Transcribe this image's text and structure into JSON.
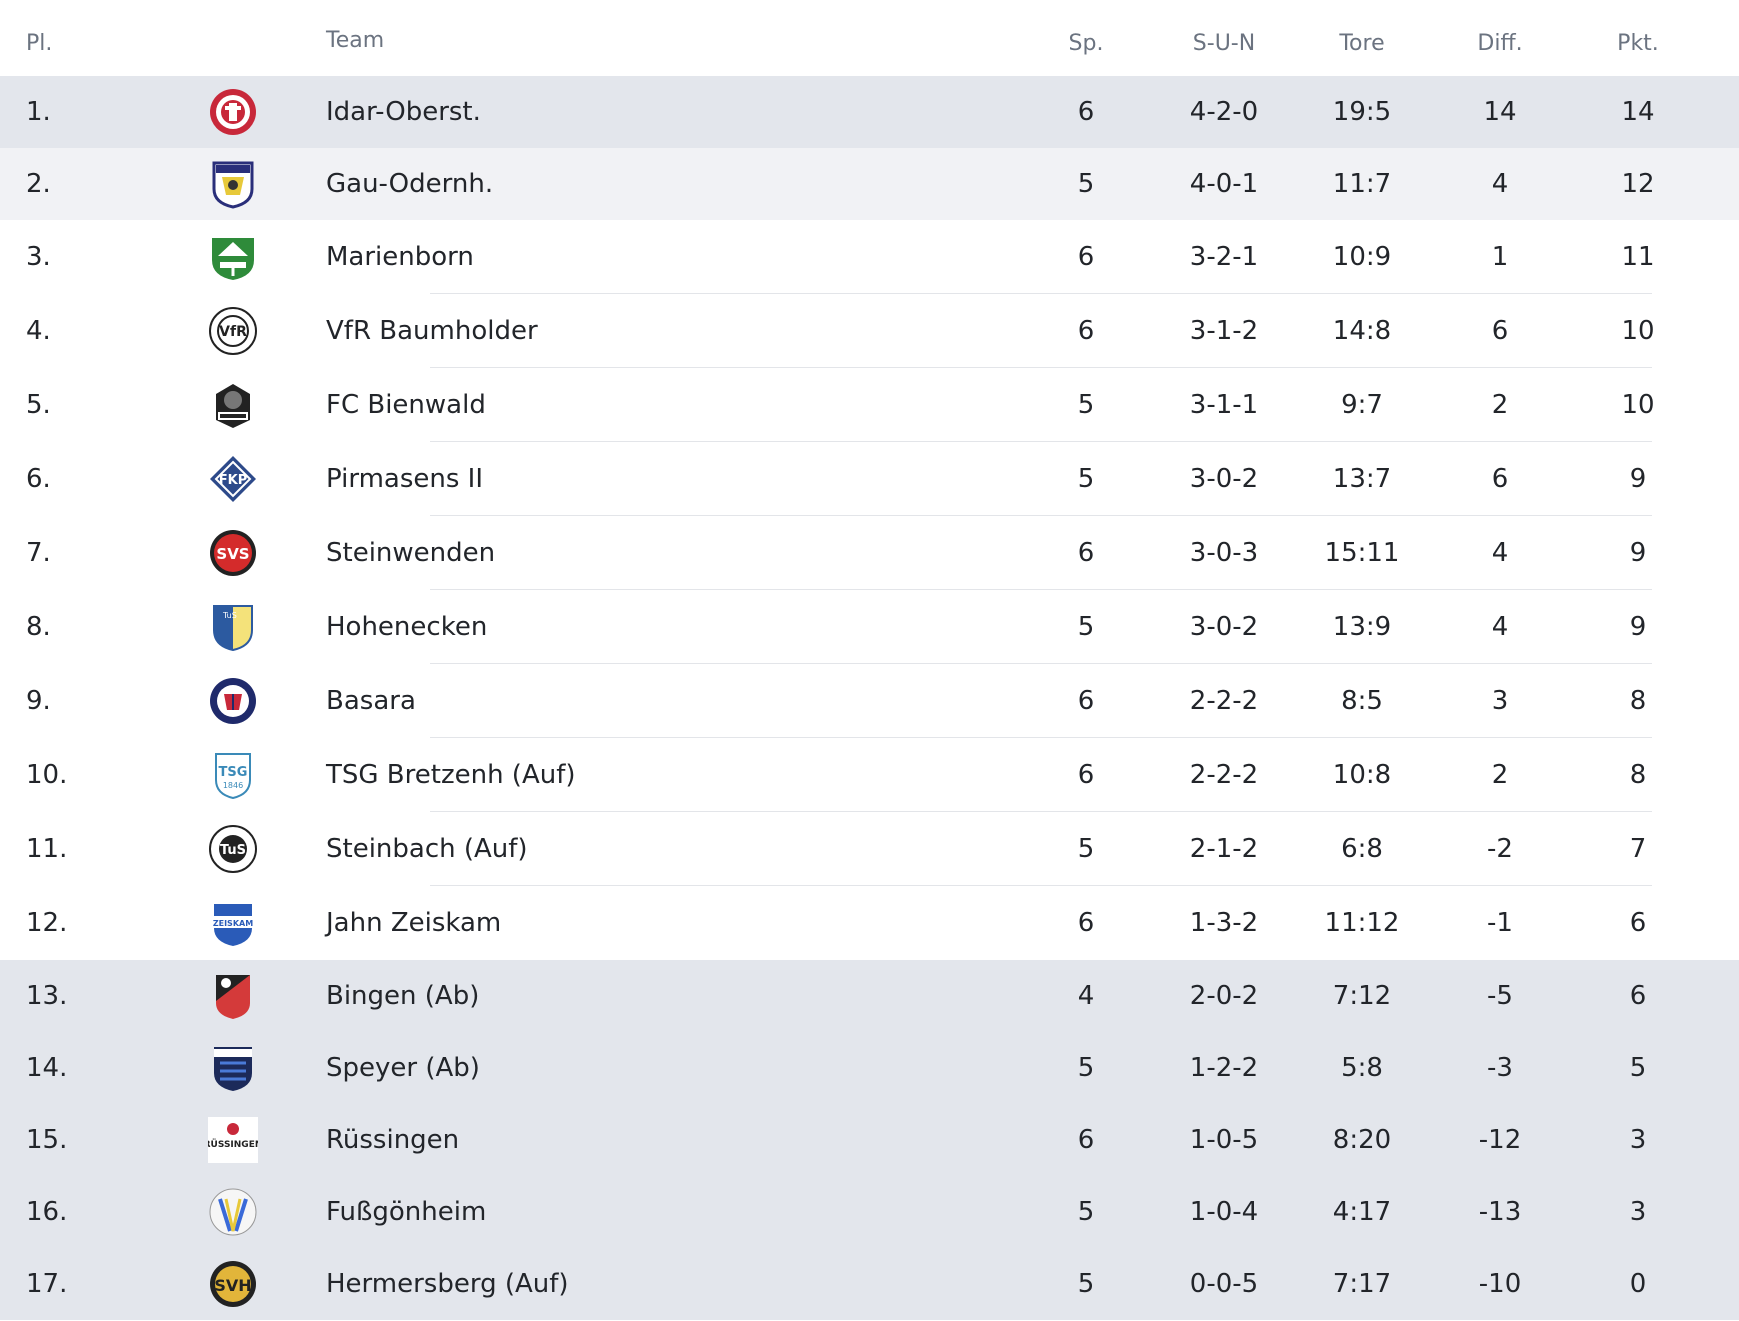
{
  "header": {
    "pos": "Pl.",
    "team": "Team",
    "sp": "Sp.",
    "sun": "S-U-N",
    "tore": "Tore",
    "diff": "Diff.",
    "pkt": "Pkt."
  },
  "colors": {
    "promotion_bg": "#e3e6ec",
    "second_bg": "#f1f2f5",
    "relegation_bg": "#e3e6ec",
    "text": "#22252a",
    "header_text": "#6b7380"
  },
  "rows": [
    {
      "pos": "1.",
      "team": "Idar-Oberst.",
      "sp": "6",
      "sun": "4-2-0",
      "tore": "19:5",
      "diff": "14",
      "pkt": "14",
      "logo": "idar-oberstein-crest",
      "zone": "promo-1"
    },
    {
      "pos": "2.",
      "team": "Gau-Odernh.",
      "sp": "5",
      "sun": "4-0-1",
      "tore": "11:7",
      "diff": "4",
      "pkt": "12",
      "logo": "gau-odernheim-crest",
      "zone": "promo-2"
    },
    {
      "pos": "3.",
      "team": "Marienborn",
      "sp": "6",
      "sun": "3-2-1",
      "tore": "10:9",
      "diff": "1",
      "pkt": "11",
      "logo": "marienborn-crest",
      "zone": ""
    },
    {
      "pos": "4.",
      "team": "VfR Baumholder",
      "sp": "6",
      "sun": "3-1-2",
      "tore": "14:8",
      "diff": "6",
      "pkt": "10",
      "logo": "baumholder-crest",
      "zone": ""
    },
    {
      "pos": "5.",
      "team": "FC Bienwald",
      "sp": "5",
      "sun": "3-1-1",
      "tore": "9:7",
      "diff": "2",
      "pkt": "10",
      "logo": "bienwald-crest",
      "zone": ""
    },
    {
      "pos": "6.",
      "team": "Pirmasens II",
      "sp": "5",
      "sun": "3-0-2",
      "tore": "13:7",
      "diff": "6",
      "pkt": "9",
      "logo": "pirmasens-crest",
      "zone": ""
    },
    {
      "pos": "7.",
      "team": "Steinwenden",
      "sp": "6",
      "sun": "3-0-3",
      "tore": "15:11",
      "diff": "4",
      "pkt": "9",
      "logo": "steinwenden-crest",
      "zone": ""
    },
    {
      "pos": "8.",
      "team": "Hohenecken",
      "sp": "5",
      "sun": "3-0-2",
      "tore": "13:9",
      "diff": "4",
      "pkt": "9",
      "logo": "hohenecken-crest",
      "zone": ""
    },
    {
      "pos": "9.",
      "team": "Basara",
      "sp": "6",
      "sun": "2-2-2",
      "tore": "8:5",
      "diff": "3",
      "pkt": "8",
      "logo": "basara-crest",
      "zone": ""
    },
    {
      "pos": "10.",
      "team": "TSG Bretzenh (Auf)",
      "sp": "6",
      "sun": "2-2-2",
      "tore": "10:8",
      "diff": "2",
      "pkt": "8",
      "logo": "bretzenheim-crest",
      "zone": ""
    },
    {
      "pos": "11.",
      "team": "Steinbach (Auf)",
      "sp": "5",
      "sun": "2-1-2",
      "tore": "6:8",
      "diff": "-2",
      "pkt": "7",
      "logo": "steinbach-crest",
      "zone": ""
    },
    {
      "pos": "12.",
      "team": "Jahn Zeiskam",
      "sp": "6",
      "sun": "1-3-2",
      "tore": "11:12",
      "diff": "-1",
      "pkt": "6",
      "logo": "zeiskam-crest",
      "zone": ""
    },
    {
      "pos": "13.",
      "team": "Bingen (Ab)",
      "sp": "4",
      "sun": "2-0-2",
      "tore": "7:12",
      "diff": "-5",
      "pkt": "6",
      "logo": "bingen-crest",
      "zone": "releg"
    },
    {
      "pos": "14.",
      "team": "Speyer (Ab)",
      "sp": "5",
      "sun": "1-2-2",
      "tore": "5:8",
      "diff": "-3",
      "pkt": "5",
      "logo": "speyer-crest",
      "zone": "releg"
    },
    {
      "pos": "15.",
      "team": "Rüssingen",
      "sp": "6",
      "sun": "1-0-5",
      "tore": "8:20",
      "diff": "-12",
      "pkt": "3",
      "logo": "ruessingen-crest",
      "zone": "releg"
    },
    {
      "pos": "16.",
      "team": "Fußgönheim",
      "sp": "5",
      "sun": "1-0-4",
      "tore": "4:17",
      "diff": "-13",
      "pkt": "3",
      "logo": "fussgoenheim-crest",
      "zone": "releg"
    },
    {
      "pos": "17.",
      "team": "Hermersberg (Auf)",
      "sp": "5",
      "sun": "0-0-5",
      "tore": "7:17",
      "diff": "-10",
      "pkt": "0",
      "logo": "hermersberg-crest",
      "zone": "releg"
    }
  ]
}
